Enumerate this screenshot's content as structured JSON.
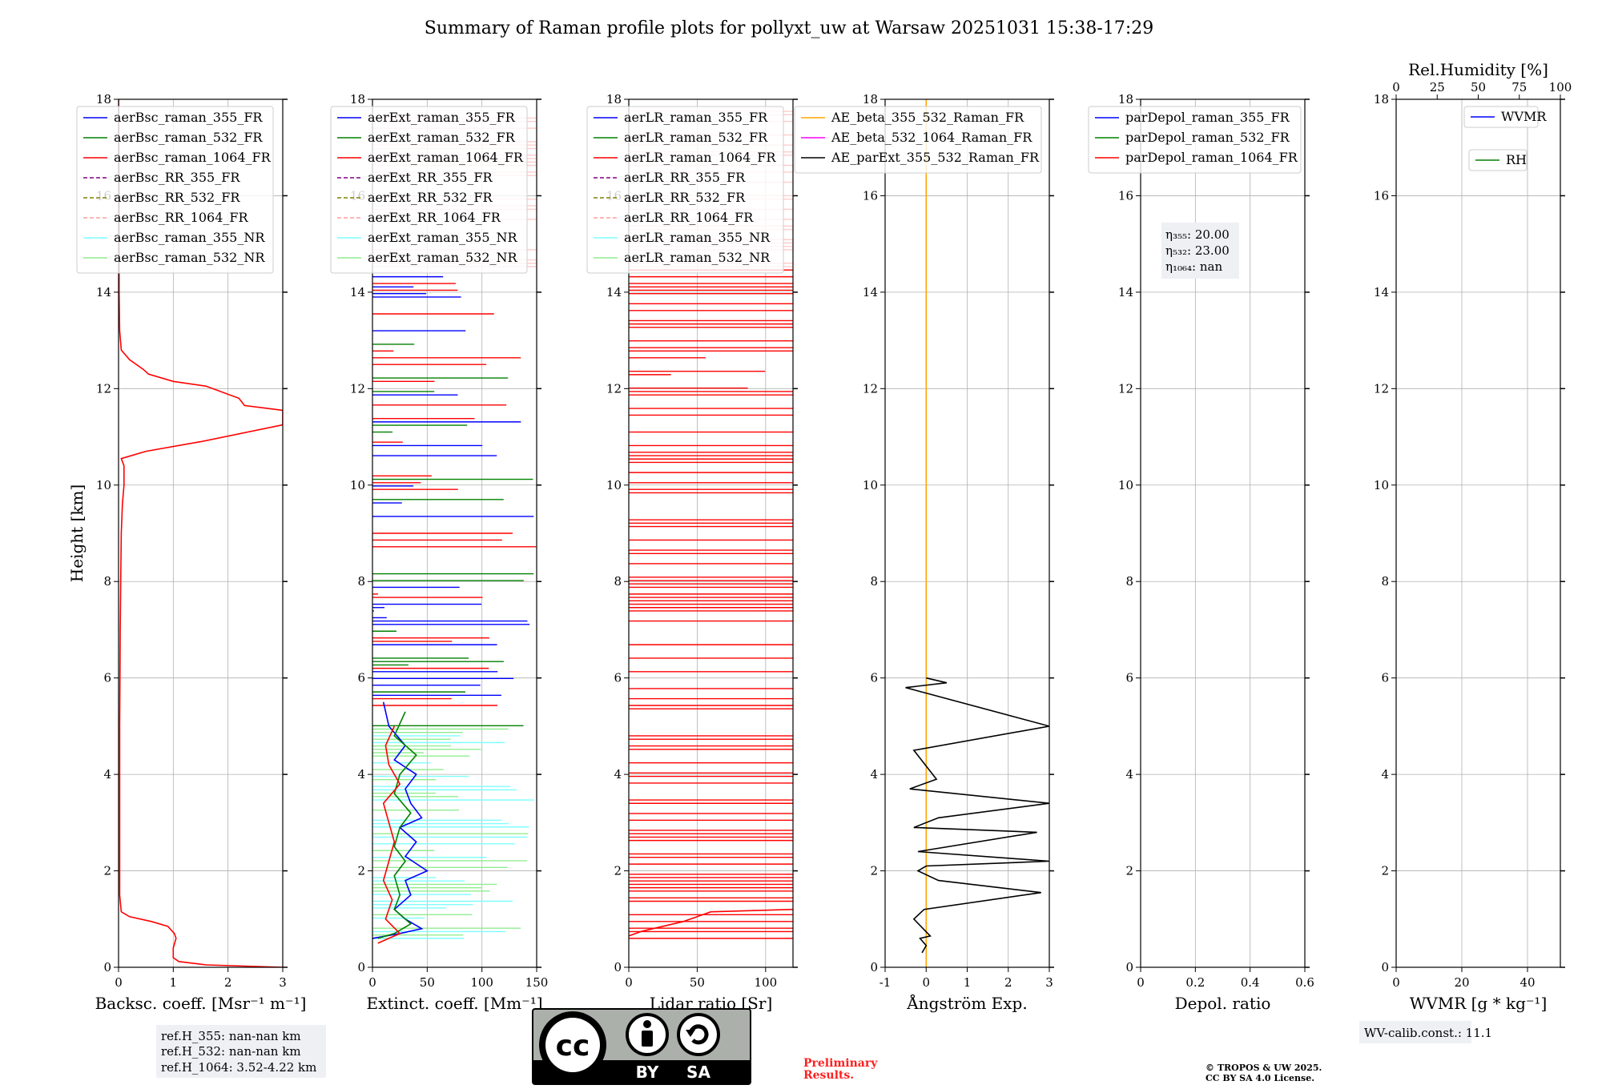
{
  "figure": {
    "title": "Summary of Raman profile plots for pollyxt_uw at Warsaw 20251031 15:38-17:29",
    "ref_heights": [
      "ref.H_355: nan-nan km",
      "ref.H_532: nan-nan km",
      "ref.H_1064: 3.52-4.22 km"
    ],
    "eta_values": [
      "η₃₅₅: 20.00",
      "η₅₃₂: 23.00",
      "η₁₀₆₄: nan"
    ],
    "wv_calib": "WV-calib.const.: 11.1",
    "preliminary": [
      "Preliminary",
      "Results."
    ],
    "copyright": [
      "© TROPOS & UW 2025.",
      "CC BY SA 4.0 License."
    ],
    "license_badge": {
      "icon": "cc-by-sa-icon",
      "labels": [
        "BY",
        "SA"
      ],
      "cc": "cc"
    }
  },
  "chart_data": [
    {
      "type": "line",
      "name": "backscatter",
      "xlabel": "Backsc. coeff. [Msr⁻¹ m⁻¹]",
      "ylabel": "Height [km]",
      "xlim": [
        0,
        3
      ],
      "ylim": [
        0,
        18
      ],
      "xticks": [
        0,
        1,
        2,
        3
      ],
      "yticks": [
        0,
        2,
        4,
        6,
        8,
        10,
        12,
        14,
        16,
        18
      ],
      "legend": [
        "aerBsc_raman_355_FR",
        "aerBsc_raman_532_FR",
        "aerBsc_raman_1064_FR",
        "aerBsc_RR_355_FR",
        "aerBsc_RR_532_FR",
        "aerBsc_RR_1064_FR",
        "aerBsc_raman_355_NR",
        "aerBsc_raman_532_NR"
      ],
      "legend_colors": [
        "#0000ff",
        "#008000",
        "#ff0000",
        "#800080",
        "#808000",
        "#ff9d9d",
        "#7fffff",
        "#90ee90"
      ],
      "legend_dashed": [
        false,
        false,
        false,
        true,
        true,
        true,
        false,
        false
      ],
      "legend_position": "top-left",
      "series": [
        {
          "name": "aerBsc_raman_1064_FR",
          "color": "#ff0000",
          "x": [
            3.0,
            1.6,
            1.1,
            1.0,
            1.0,
            1.05,
            1.02,
            0.9,
            0.6,
            0.2,
            0.05,
            0.02,
            0.02,
            0.02,
            0.03,
            0.04,
            0.05,
            0.07,
            0.1,
            0.1,
            0.05,
            0.5,
            1.5,
            3.0,
            3.0,
            2.3,
            2.2,
            1.6,
            1.0,
            0.55,
            0.45,
            0.2,
            0.05,
            0.02,
            0.01,
            0.01,
            0.0
          ],
          "y": [
            0.0,
            0.05,
            0.12,
            0.2,
            0.4,
            0.6,
            0.7,
            0.85,
            0.95,
            1.05,
            1.15,
            1.5,
            3.0,
            5.0,
            7.0,
            8.0,
            9.0,
            9.6,
            10.0,
            10.4,
            10.55,
            10.7,
            10.9,
            11.25,
            11.55,
            11.65,
            11.8,
            12.05,
            12.15,
            12.3,
            12.4,
            12.6,
            12.8,
            13.2,
            14.0,
            16.0,
            18.0
          ]
        }
      ]
    },
    {
      "type": "line",
      "name": "extinction",
      "xlabel": "Extinct. coeff. [Mm⁻¹]",
      "xlim": [
        0,
        150
      ],
      "ylim": [
        0,
        18
      ],
      "xticks": [
        0,
        50,
        100,
        150
      ],
      "yticks": [
        0,
        2,
        4,
        6,
        8,
        10,
        12,
        14,
        16,
        18
      ],
      "legend": [
        "aerExt_raman_355_FR",
        "aerExt_raman_532_FR",
        "aerExt_raman_1064_FR",
        "aerExt_RR_355_FR",
        "aerExt_RR_532_FR",
        "aerExt_RR_1064_FR",
        "aerExt_raman_355_NR",
        "aerExt_raman_532_NR"
      ],
      "legend_colors": [
        "#0000ff",
        "#008000",
        "#ff0000",
        "#800080",
        "#808000",
        "#ff9d9d",
        "#7fffff",
        "#90ee90"
      ],
      "legend_dashed": [
        false,
        false,
        false,
        true,
        true,
        true,
        false,
        false
      ],
      "legend_position": "top-left",
      "series": [
        {
          "name": "aerExt_raman_355_FR",
          "color": "#0000ff",
          "x": [
            0,
            25,
            45,
            30,
            20,
            35,
            30,
            50,
            30,
            40,
            25,
            45,
            35,
            30,
            40,
            20,
            30,
            15,
            10
          ],
          "y": [
            0.6,
            0.7,
            0.8,
            1.0,
            1.2,
            1.5,
            1.8,
            2.0,
            2.3,
            2.6,
            2.9,
            3.1,
            3.4,
            3.7,
            4.0,
            4.3,
            4.6,
            5.0,
            5.5
          ]
        },
        {
          "name": "aerExt_raman_532_FR",
          "color": "#008000",
          "x": [
            5,
            20,
            35,
            20,
            25,
            20,
            30,
            20,
            25,
            35,
            20,
            25,
            40,
            20,
            30
          ],
          "y": [
            0.6,
            0.7,
            0.9,
            1.2,
            1.5,
            1.9,
            2.2,
            2.5,
            2.9,
            3.2,
            3.6,
            4.0,
            4.4,
            4.8,
            5.3
          ]
        },
        {
          "name": "aerExt_raman_1064_FR",
          "color": "#ff0000",
          "x": [
            5,
            25,
            12,
            18,
            10,
            15,
            20,
            15,
            10,
            25,
            15,
            12,
            20
          ],
          "y": [
            0.5,
            0.7,
            1.0,
            1.4,
            1.8,
            2.2,
            2.6,
            3.0,
            3.4,
            3.8,
            4.2,
            4.6,
            5.0
          ]
        }
      ]
    },
    {
      "type": "line",
      "name": "lidar_ratio",
      "xlabel": "Lidar ratio [Sr]",
      "xlim": [
        0,
        120
      ],
      "ylim": [
        0,
        18
      ],
      "xticks": [
        0,
        50,
        100
      ],
      "yticks": [
        0,
        2,
        4,
        6,
        8,
        10,
        12,
        14,
        16,
        18
      ],
      "legend": [
        "aerLR_raman_355_FR",
        "aerLR_raman_532_FR",
        "aerLR_raman_1064_FR",
        "aerLR_RR_355_FR",
        "aerLR_RR_532_FR",
        "aerLR_RR_1064_FR",
        "aerLR_raman_355_NR",
        "aerLR_raman_532_NR"
      ],
      "legend_colors": [
        "#0000ff",
        "#008000",
        "#ff0000",
        "#800080",
        "#808000",
        "#ff9d9d",
        "#7fffff",
        "#90ee90"
      ],
      "legend_dashed": [
        false,
        false,
        false,
        true,
        true,
        true,
        false,
        false
      ],
      "legend_position": "top-left",
      "series": [
        {
          "name": "aerLR_raman_1064_FR",
          "color": "#ff0000",
          "x": [
            0,
            10,
            25,
            40,
            50,
            60,
            120
          ],
          "y": [
            0.65,
            0.75,
            0.85,
            0.95,
            1.05,
            1.15,
            1.2
          ]
        }
      ]
    },
    {
      "type": "line",
      "name": "angstrom",
      "xlabel": "Ångström Exp.",
      "xlim": [
        -1,
        3
      ],
      "ylim": [
        0,
        18
      ],
      "xticks": [
        -1,
        0,
        1,
        2,
        3
      ],
      "yticks": [
        0,
        2,
        4,
        6,
        8,
        10,
        12,
        14,
        16,
        18
      ],
      "legend": [
        "AE_beta_355_532_Raman_FR",
        "AE_beta_532_1064_Raman_FR",
        "AE_parExt_355_532_Raman_FR"
      ],
      "legend_colors": [
        "#ffa500",
        "#ff00ff",
        "#000000"
      ],
      "legend_dashed": [
        false,
        false,
        false
      ],
      "legend_position": "top-left",
      "series": [
        {
          "name": "AE_beta_355_532_Raman_FR",
          "color": "#ffa500",
          "x": [
            0,
            0
          ],
          "y": [
            0,
            18
          ]
        },
        {
          "name": "AE_parExt_355_532_Raman_FR",
          "color": "#000000",
          "x": [
            -0.1,
            0.0,
            -0.15,
            0.1,
            -0.3,
            -0.05,
            2.8,
            0.3,
            -0.2,
            0.0,
            3.0,
            -0.2,
            2.7,
            -0.3,
            0.3,
            3.0,
            -0.4,
            0.25,
            -0.3,
            3.0,
            -0.5,
            0.5,
            0.0
          ],
          "y": [
            0.3,
            0.45,
            0.6,
            0.65,
            1.0,
            1.2,
            1.55,
            1.8,
            2.0,
            2.1,
            2.2,
            2.4,
            2.8,
            2.9,
            3.1,
            3.4,
            3.7,
            3.9,
            4.5,
            5.0,
            5.8,
            5.9,
            6.0
          ]
        }
      ]
    },
    {
      "type": "line",
      "name": "depolarization",
      "xlabel": "Depol. ratio",
      "xlim": [
        0,
        0.6
      ],
      "ylim": [
        0,
        18
      ],
      "xticks": [
        0.0,
        0.2,
        0.4,
        0.6
      ],
      "yticks": [
        0,
        2,
        4,
        6,
        8,
        10,
        12,
        14,
        16,
        18
      ],
      "legend": [
        "parDepol_raman_355_FR",
        "parDepol_raman_532_FR",
        "parDepol_raman_1064_FR"
      ],
      "legend_colors": [
        "#0000ff",
        "#008000",
        "#ff0000"
      ],
      "legend_dashed": [
        false,
        false,
        false
      ],
      "legend_position": "top-left",
      "series": []
    },
    {
      "type": "line",
      "name": "water_vapor",
      "xlabel": "WVMR [g * kg⁻¹]",
      "top_xlabel": "Rel.Humidity [%]",
      "xlim": [
        0,
        50
      ],
      "top_xlim": [
        0,
        100
      ],
      "ylim": [
        0,
        18
      ],
      "xticks": [
        0,
        20,
        40
      ],
      "top_xticks": [
        0,
        25,
        50,
        75,
        100
      ],
      "yticks": [
        0,
        2,
        4,
        6,
        8,
        10,
        12,
        14,
        16,
        18
      ],
      "legend": [
        "WVMR",
        "RH"
      ],
      "legend_colors": [
        "#0000ff",
        "#008000"
      ],
      "legend_dashed": [
        false,
        false
      ],
      "legend_position": "top-right",
      "series": []
    }
  ]
}
